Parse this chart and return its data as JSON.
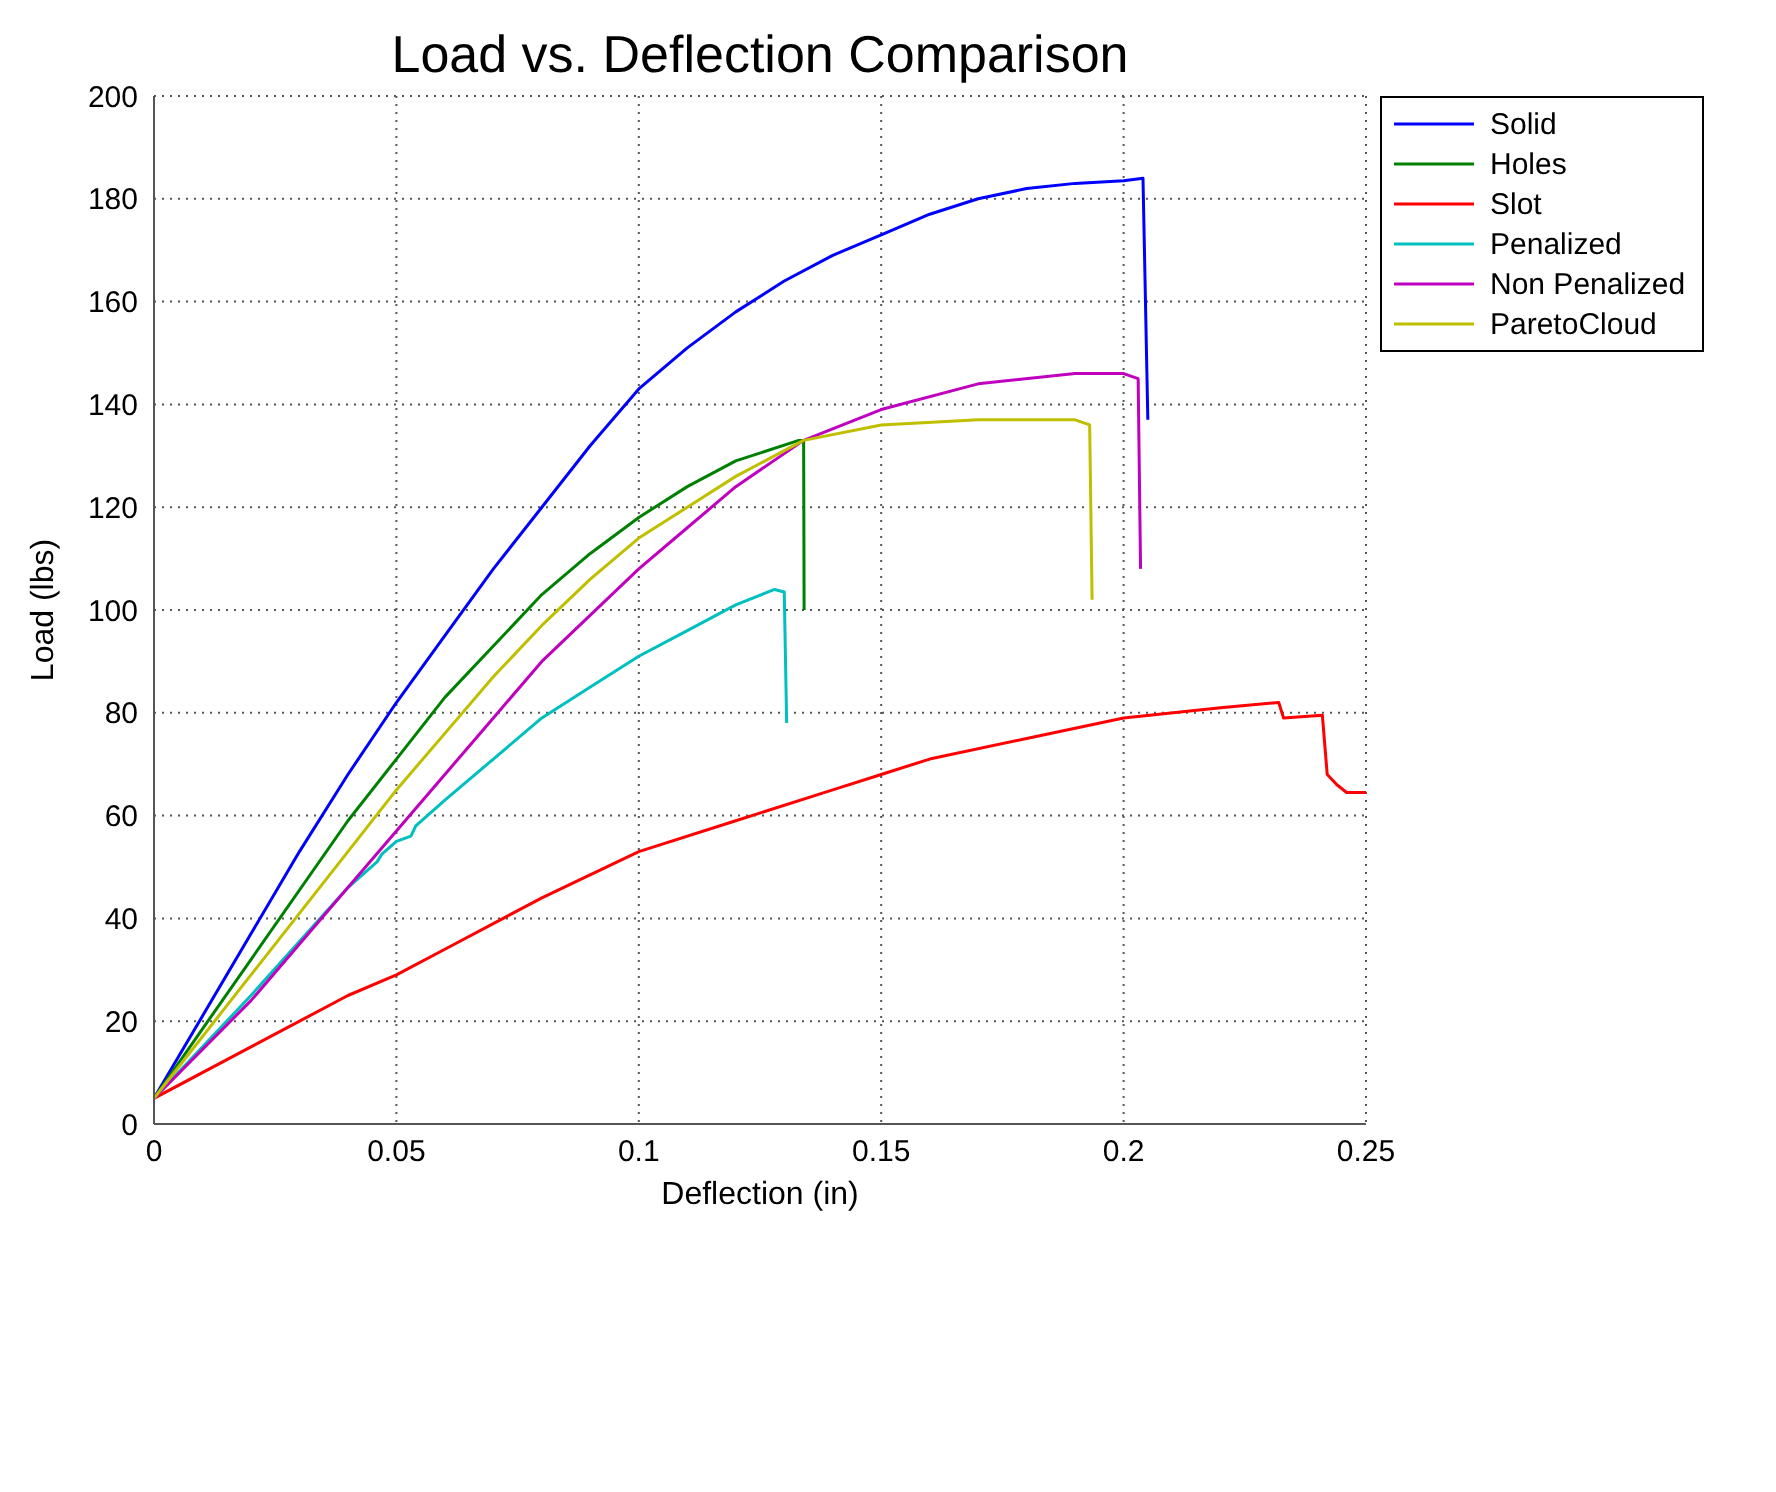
{
  "chart_data": {
    "type": "line",
    "title": "Load vs. Deflection Comparison",
    "xlabel": "Deflection (in)",
    "ylabel": "Load (lbs)",
    "xlim": [
      0,
      0.25
    ],
    "xticks": [
      0,
      0.05,
      0.1,
      0.15,
      0.2,
      0.25
    ],
    "ylim": [
      0,
      200
    ],
    "yticks": [
      0,
      20,
      40,
      60,
      80,
      100,
      120,
      140,
      160,
      180,
      200
    ],
    "grid": true,
    "legend": "right",
    "marker": "none",
    "line_style": "solid",
    "series": [
      {
        "name": "Solid",
        "color": "#0000ff",
        "x": [
          0,
          0.01,
          0.02,
          0.03,
          0.04,
          0.05,
          0.06,
          0.07,
          0.08,
          0.09,
          0.1,
          0.11,
          0.12,
          0.13,
          0.14,
          0.15,
          0.16,
          0.17,
          0.18,
          0.19,
          0.2,
          0.204,
          0.205
        ],
        "values": [
          5,
          21,
          37,
          53,
          68,
          82,
          95,
          108,
          120,
          132,
          143,
          151,
          158,
          164,
          169,
          173,
          177,
          180,
          182,
          183,
          183.5,
          184,
          137
        ]
      },
      {
        "name": "Holes",
        "color": "#008000",
        "x": [
          0,
          0.02,
          0.04,
          0.05,
          0.06,
          0.07,
          0.08,
          0.09,
          0.1,
          0.11,
          0.12,
          0.133,
          0.134,
          0.1341
        ],
        "values": [
          5,
          32,
          59,
          71,
          83,
          93,
          103,
          111,
          118,
          124,
          129,
          133,
          133,
          100
        ]
      },
      {
        "name": "Slot",
        "color": "#ff0000",
        "x": [
          0,
          0.02,
          0.04,
          0.05,
          0.06,
          0.08,
          0.1,
          0.12,
          0.14,
          0.15,
          0.16,
          0.18,
          0.2,
          0.22,
          0.232,
          0.233,
          0.241,
          0.242,
          0.244,
          0.246,
          0.25
        ],
        "values": [
          5,
          15,
          25,
          29,
          34,
          44,
          53,
          59,
          65,
          68,
          71,
          75,
          79,
          81,
          82,
          79,
          79.5,
          68,
          66,
          64.5,
          64.5
        ]
      },
      {
        "name": "Penalized",
        "color": "#00bfbf",
        "x": [
          0,
          0.02,
          0.04,
          0.046,
          0.047,
          0.05,
          0.053,
          0.054,
          0.06,
          0.07,
          0.08,
          0.09,
          0.1,
          0.11,
          0.12,
          0.128,
          0.13,
          0.1305
        ],
        "values": [
          5,
          25,
          46,
          51,
          52.5,
          55,
          56,
          58,
          63,
          71,
          79,
          85,
          91,
          96,
          101,
          104,
          103.5,
          78
        ]
      },
      {
        "name": "Non Penalized",
        "color": "#bf00bf",
        "x": [
          0,
          0.02,
          0.04,
          0.05,
          0.06,
          0.07,
          0.08,
          0.09,
          0.1,
          0.11,
          0.12,
          0.134,
          0.15,
          0.17,
          0.19,
          0.2,
          0.203,
          0.2035
        ],
        "values": [
          5,
          24,
          46,
          57,
          68,
          79,
          90,
          99,
          108,
          116,
          124,
          133,
          139,
          144,
          146,
          146,
          145,
          108
        ]
      },
      {
        "name": "ParetoCloud",
        "color": "#bfbf00",
        "x": [
          0,
          0.02,
          0.04,
          0.05,
          0.06,
          0.07,
          0.08,
          0.09,
          0.1,
          0.11,
          0.12,
          0.134,
          0.15,
          0.17,
          0.19,
          0.193,
          0.1935
        ],
        "values": [
          5,
          29,
          53,
          65,
          76,
          87,
          97,
          106,
          114,
          120,
          126,
          133,
          136,
          137,
          137,
          136,
          102
        ]
      }
    ]
  }
}
